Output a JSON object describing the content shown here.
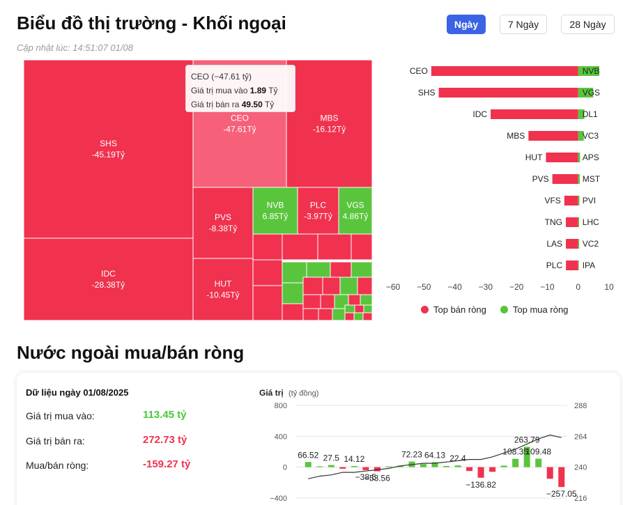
{
  "header": {
    "title": "Biểu đồ thị trường - Khối ngoại",
    "updated": "Cập nhật lúc: 14:51:07 01/08",
    "ranges": [
      "Ngày",
      "7 Ngày",
      "28 Ngày"
    ],
    "active_range": "Ngày"
  },
  "colors": {
    "sell": "#f0324f",
    "buy": "#59c53d",
    "highlight": "#f76079",
    "accent": "#3b63e3"
  },
  "treemap": {
    "tiles": [
      {
        "name": "SHS",
        "value": "-45.19Tỷ",
        "type": "sell"
      },
      {
        "name": "CEO",
        "value": "-47.61Tỷ",
        "type": "highlight"
      },
      {
        "name": "MBS",
        "value": "-16.12Tỷ",
        "type": "sell"
      },
      {
        "name": "IDC",
        "value": "-28.38Tỷ",
        "type": "sell"
      },
      {
        "name": "PVS",
        "value": "-8.38Tỷ",
        "type": "sell"
      },
      {
        "name": "NVB",
        "value": "6.85Tỷ",
        "type": "buy"
      },
      {
        "name": "PLC",
        "value": "-3.97Tỷ",
        "type": "sell"
      },
      {
        "name": "VGS",
        "value": "4.86Tỷ",
        "type": "buy"
      },
      {
        "name": "HUT",
        "value": "-10.45Tỷ",
        "type": "sell"
      }
    ]
  },
  "tooltip": {
    "title": "CEO (−47.61 tỷ)",
    "buy_label": "Giá trị mua vào",
    "buy_value": "1.89",
    "buy_unit": "Tỷ",
    "sell_label": "Giá trị bán ra",
    "sell_value": "49.50",
    "sell_unit": "Tỷ"
  },
  "chart_data": [
    {
      "type": "bar",
      "orientation": "horizontal",
      "xlim": [
        -60,
        10
      ],
      "ticks": [
        -60,
        -50,
        -40,
        -30,
        -20,
        -10,
        0,
        10
      ],
      "grid": false,
      "legend_position": "bottom",
      "series": [
        {
          "name": "Top bán ròng",
          "categories": [
            "CEO",
            "SHS",
            "IDC",
            "MBS",
            "HUT",
            "PVS",
            "VFS",
            "TNG",
            "LAS",
            "PLC"
          ],
          "values": [
            -47.61,
            -45.19,
            -28.38,
            -16.12,
            -10.45,
            -8.38,
            -4.5,
            -4.0,
            -4.0,
            -3.97
          ]
        },
        {
          "name": "Top mua ròng",
          "categories": [
            "NVB",
            "VGS",
            "DL1",
            "VC3",
            "APS",
            "MST",
            "PVI",
            "LHC",
            "VC2",
            "IPA"
          ],
          "values": [
            6.85,
            4.86,
            2.0,
            1.8,
            0.6,
            0.5,
            0.4,
            0.3,
            0.3,
            0.2
          ]
        }
      ]
    },
    {
      "type": "bar",
      "ylabel": "Giá trị",
      "ylabel_unit": "(tỷ đồng)",
      "ylim": [
        -400,
        800
      ],
      "yticks": [
        800,
        400,
        0,
        -400
      ],
      "y2ticks": [
        288,
        264,
        240,
        216
      ],
      "grid": true,
      "values": [
        66.52,
        10,
        27.5,
        -20,
        14.12,
        -38.5,
        -53.56,
        10,
        20,
        72.23,
        40,
        64.13,
        15,
        22.4,
        -50,
        -136.82,
        -60,
        20,
        108.35,
        263.79,
        109.48,
        -150,
        -257.05
      ],
      "labeled_points": [
        {
          "i": 0,
          "label": "66.52"
        },
        {
          "i": 2,
          "label": "27.5"
        },
        {
          "i": 4,
          "label": "14.12"
        },
        {
          "i": 5,
          "label": "−38.5"
        },
        {
          "i": 6,
          "label": "−53.56"
        },
        {
          "i": 9,
          "label": "72.23"
        },
        {
          "i": 11,
          "label": "64.13"
        },
        {
          "i": 13,
          "label": "22.4"
        },
        {
          "i": 15,
          "label": "−136.82"
        },
        {
          "i": 18,
          "label": "108.35"
        },
        {
          "i": 19,
          "label": "263.79"
        },
        {
          "i": 20,
          "label": "109.48"
        },
        {
          "i": 22,
          "label": "−257.05"
        }
      ],
      "line_y2": [
        231,
        233,
        234,
        236,
        236,
        237,
        238,
        239,
        241,
        242,
        243,
        243,
        244,
        245,
        246,
        246,
        248,
        251,
        254,
        258,
        262,
        265,
        263
      ]
    }
  ],
  "legend": {
    "sell_label": "Top bán ròng",
    "buy_label": "Top mua ròng"
  },
  "net": {
    "section_title": "Nước ngoài mua/bán ròng",
    "date_label": "Dữ liệu ngày 01/08/2025",
    "buy_label": "Giá trị mua vào:",
    "buy_value": "113.45 tỷ",
    "sell_label": "Giá trị bán ra:",
    "sell_value": "272.73 tỷ",
    "net_label": "Mua/bán ròng:",
    "net_value": "-159.27 tỷ",
    "chart_ylabel": "Giá trị",
    "chart_unit": "(tỷ đồng)"
  }
}
